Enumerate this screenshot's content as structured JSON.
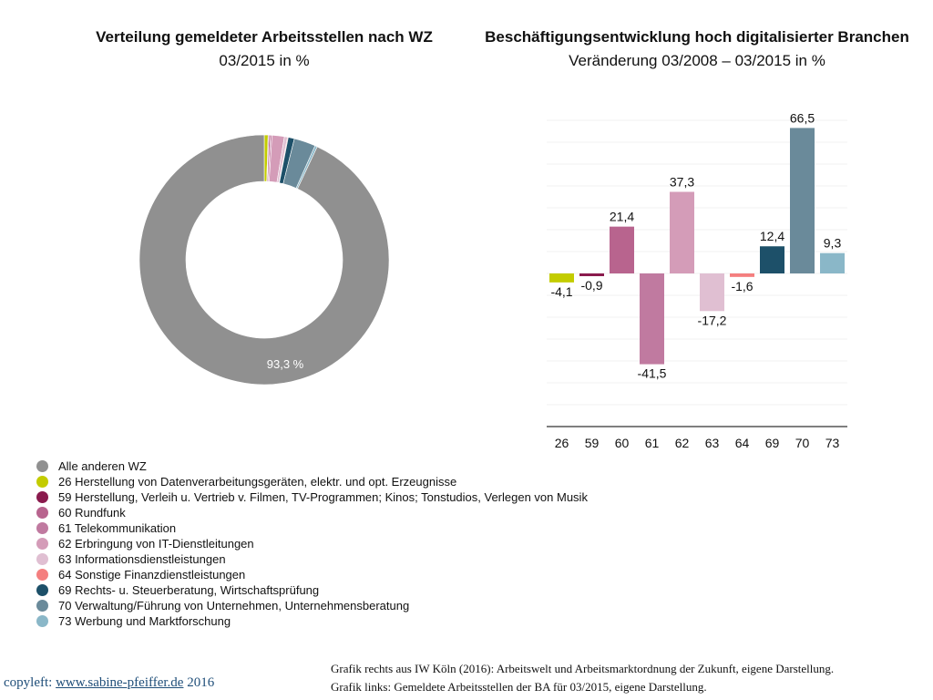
{
  "chart_data": [
    {
      "type": "pie",
      "title": "Verteilung gemeldeter Arbeitsstellen nach WZ",
      "subtitle": "03/2015 in %",
      "categories": [
        "26",
        "59",
        "60",
        "61",
        "62",
        "63",
        "64",
        "69",
        "70",
        "73",
        "Alle anderen WZ"
      ],
      "values": [
        0.5,
        0.1,
        0.2,
        0.2,
        1.6,
        0.4,
        0.1,
        0.8,
        2.8,
        0.3,
        93.3
      ],
      "data_labels": [
        "",
        "",
        "",
        "",
        "",
        "",
        "",
        "",
        "",
        "",
        "93,3 %"
      ]
    },
    {
      "type": "bar",
      "title": "Beschäftigungsentwicklung hoch digitalisierter Branchen",
      "subtitle": "Veränderung 03/2008 – 03/2015 in %",
      "categories": [
        "26",
        "59",
        "60",
        "61",
        "62",
        "63",
        "64",
        "69",
        "70",
        "73"
      ],
      "values": [
        -4.1,
        -0.9,
        21.4,
        -41.5,
        37.3,
        -17.2,
        -1.6,
        12.4,
        66.5,
        9.3
      ],
      "data_labels": [
        "-4,1",
        "-0,9",
        "21,4",
        "-41,5",
        "37,3",
        "-17,2",
        "-1,6",
        "12,4",
        "66,5",
        "9,3"
      ],
      "ylim": [
        -70,
        70
      ],
      "grid": true
    }
  ],
  "colors": {
    "26": "#c3cc00",
    "59": "#8a1a4d",
    "60": "#b8648e",
    "61": "#c07aa0",
    "62": "#d49cb8",
    "63": "#e0bfd2",
    "64": "#f47f7f",
    "69": "#1d5069",
    "70": "#6a8a9a",
    "73": "#8ab7c8",
    "Alle anderen WZ": "#909090"
  },
  "legend": [
    {
      "key": "Alle anderen WZ",
      "label": "Alle anderen WZ"
    },
    {
      "key": "26",
      "label": "26 Herstellung von Datenverarbeitungsgeräten, elektr. und opt. Erzeugnisse"
    },
    {
      "key": "59",
      "label": "59 Herstellung, Verleih u. Vertrieb v. Filmen, TV-Programmen; Kinos; Tonstudios, Verlegen von Musik"
    },
    {
      "key": "60",
      "label": "60 Rundfunk"
    },
    {
      "key": "61",
      "label": "61 Telekommunikation"
    },
    {
      "key": "62",
      "label": "62 Erbringung von IT-Dienstleitungen"
    },
    {
      "key": "63",
      "label": "63 Informationsdienstleistungen"
    },
    {
      "key": "64",
      "label": "64 Sonstige Finanzdienstleistungen"
    },
    {
      "key": "69",
      "label": "69 Rechts- u. Steuerberatung,  Wirtschaftsprüfung"
    },
    {
      "key": "70",
      "label": "70 Verwaltung/Führung von  Unternehmen, Unternehmensberatung"
    },
    {
      "key": "73",
      "label": "73 Werbung und Marktforschung"
    }
  ],
  "footer": {
    "copyleft_prefix": "copyleft: ",
    "copyleft_link": "www.sabine-pfeiffer.de",
    "copyleft_year": " 2016",
    "source_right": "Grafik rechts aus IW Köln (2016): Arbeitswelt und Arbeitsmarktordnung der Zukunft, eigene Darstellung.",
    "source_left": "Grafik links: Gemeldete Arbeitsstellen der BA für 03/2015, eigene Darstellung."
  }
}
